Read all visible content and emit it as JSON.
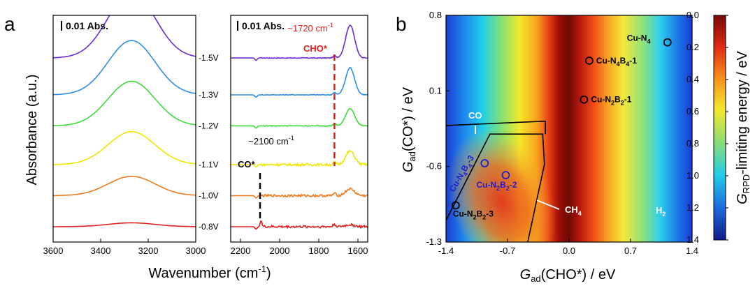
{
  "panel_labels": {
    "a": "a",
    "b": "b"
  },
  "chart_data": [
    {
      "type": "line",
      "title": "",
      "scale_bar": "0.01 Abs.",
      "xlabel": "Wavenumber (cm",
      "xlabel_sup": "-1",
      "xlabel_end": ")",
      "ylabel": "Absorbance (a.u.)",
      "xlim": [
        3600,
        3000
      ],
      "xticks": [
        "3600",
        "3400",
        "3200",
        "3000"
      ],
      "xtick_values": [
        3600,
        3400,
        3200,
        3000
      ],
      "series": [
        {
          "name": "-1.5V",
          "color": "#6b2bd9",
          "baseline": 8.7,
          "peak_center": 3270,
          "peak_height": 3.4
        },
        {
          "name": "-1.3V",
          "color": "#2e8ee8",
          "baseline": 6.8,
          "peak_center": 3270,
          "peak_height": 2.8
        },
        {
          "name": "-1.2V",
          "color": "#3ddc3a",
          "baseline": 5.2,
          "peak_center": 3270,
          "peak_height": 2.3
        },
        {
          "name": "-1.1V",
          "color": "#f2e600",
          "baseline": 3.2,
          "peak_center": 3270,
          "peak_height": 1.7
        },
        {
          "name": "-1.0V",
          "color": "#f07b1e",
          "baseline": 1.6,
          "peak_center": 3270,
          "peak_height": 1.0
        },
        {
          "name": "-0.8V",
          "color": "#e0201e",
          "baseline": 0.0,
          "peak_center": 3270,
          "peak_height": 0.2
        }
      ]
    },
    {
      "type": "line",
      "scale_bar": "0.01 Abs.",
      "xlim": [
        2250,
        1550
      ],
      "xticks": [
        "2200",
        "2000",
        "1800",
        "1600"
      ],
      "xtick_values": [
        2200,
        2000,
        1800,
        1600
      ],
      "annotations": {
        "cho_wavenumber": "~1720 cm",
        "cho_sup": "-1",
        "cho_label": "CHO*",
        "co_wavenumber": "~2100 cm",
        "co_sup": "-1",
        "co_label": "CO*",
        "cho_position": 1720,
        "co_position": 2100
      },
      "series": [
        {
          "name": "-1.5V",
          "color": "#6b2bd9",
          "baseline": 8.7,
          "peak_1640": 1.7
        },
        {
          "name": "-1.3V",
          "color": "#2e8ee8",
          "baseline": 6.8,
          "peak_1640": 1.4
        },
        {
          "name": "-1.2V",
          "color": "#3ddc3a",
          "baseline": 5.2,
          "peak_1640": 0.9
        },
        {
          "name": "-1.1V",
          "color": "#f2e600",
          "baseline": 3.2,
          "peak_1640": 0.7
        },
        {
          "name": "-1.0V",
          "color": "#f07b1e",
          "baseline": 1.6,
          "peak_1640": 0.35
        },
        {
          "name": "-0.8V",
          "color": "#e0201e",
          "baseline": 0.0,
          "peak_1640": 0.1
        }
      ]
    },
    {
      "type": "heatmap",
      "xlabel": "G",
      "xlabel_sub": "ad",
      "xlabel_end": "(CHO*) / eV",
      "ylabel": "G",
      "ylabel_sub": "ad",
      "ylabel_end": "(CO*) / eV",
      "xlim": [
        -1.4,
        1.4
      ],
      "ylim": [
        -1.3,
        0.8
      ],
      "xticks": [
        "-1.4",
        "-0.7",
        "0.0",
        "0.7",
        "1.4"
      ],
      "xtick_values": [
        -1.4,
        -0.7,
        0.0,
        0.7,
        1.4
      ],
      "yticks": [
        "-1.3",
        "-0.6",
        "0.1",
        "0.8"
      ],
      "ytick_values": [
        -1.3,
        -0.6,
        0.1,
        0.8
      ],
      "colorbar": {
        "label_pre": "G",
        "label_sub": "RPD",
        "label_end": "-limiting energy / eV",
        "ticks": [
          "0.0",
          "0.2",
          "0.4",
          "0.6",
          "0.8",
          "1.0",
          "1.2",
          "1.4"
        ],
        "tick_values": [
          0.0,
          0.2,
          0.4,
          0.6,
          0.8,
          1.0,
          1.2,
          1.4
        ]
      },
      "region_labels": {
        "co": "CO",
        "ch4": "CH",
        "ch4_sub": "4",
        "h2": "H",
        "h2_sub": "2"
      },
      "points": [
        {
          "name": "Cu-N4",
          "parts": [
            "Cu-N",
            "4"
          ],
          "x": 1.12,
          "y": 0.55,
          "color": "#000000"
        },
        {
          "name": "Cu-N4B4-1",
          "parts": [
            "Cu-N",
            "4",
            "B",
            "4",
            "-1"
          ],
          "x": 0.23,
          "y": 0.38,
          "color": "#000000"
        },
        {
          "name": "Cu-N2B2-1",
          "parts": [
            "Cu-N",
            "2",
            "B",
            "2",
            "-1"
          ],
          "x": 0.17,
          "y": 0.02,
          "color": "#000000"
        },
        {
          "name": "Cu-N4B4-3",
          "parts": [
            "Cu-N",
            "4",
            "B",
            "4",
            "-3"
          ],
          "x": -0.96,
          "y": -0.57,
          "color": "#1f1fd0"
        },
        {
          "name": "Cu-N2B2-2",
          "parts": [
            "Cu-N",
            "2",
            "B",
            "2",
            "-2"
          ],
          "x": -0.72,
          "y": -0.68,
          "color": "#1f1fd0"
        },
        {
          "name": "Cu-N2B2-3",
          "parts": [
            "Cu-N",
            "2",
            "B",
            "2",
            "-3"
          ],
          "x": -1.29,
          "y": -0.96,
          "color": "#000000"
        }
      ]
    }
  ]
}
